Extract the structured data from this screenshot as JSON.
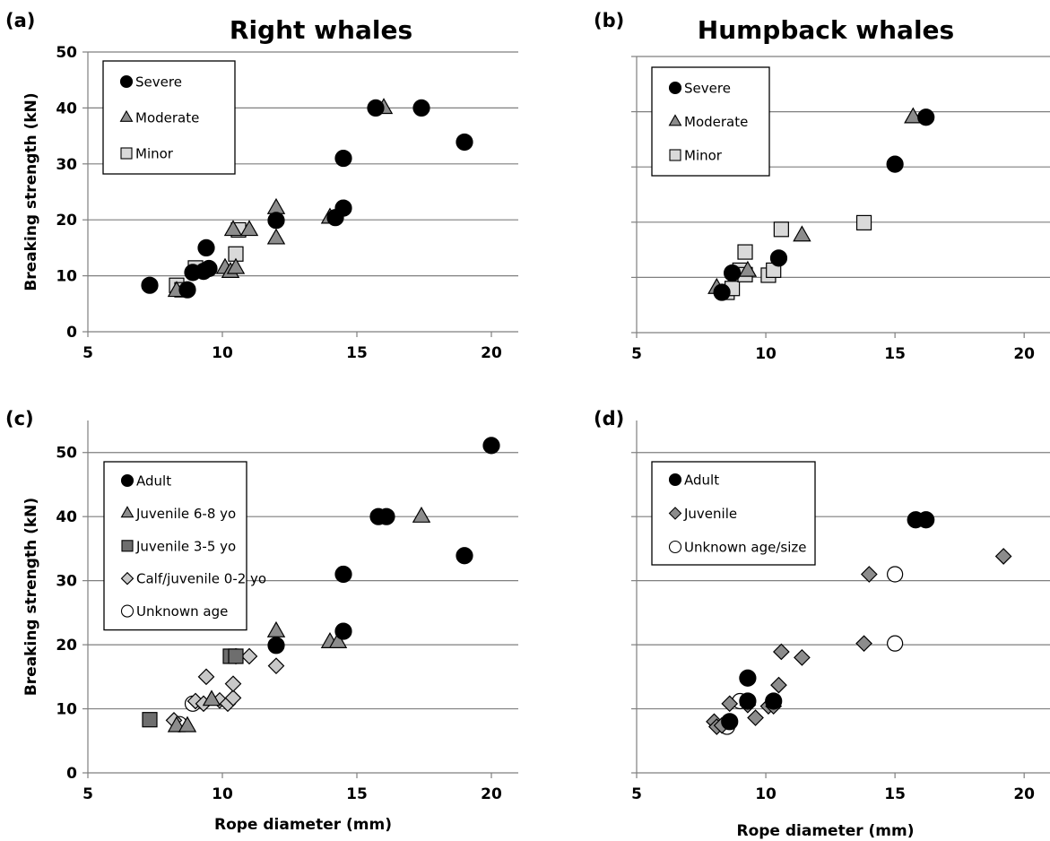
{
  "chart_data": [
    {
      "panel": "(a)",
      "title": "Right whales",
      "type": "scatter",
      "xlabel": "",
      "ylabel": "Breaking strength (kN)",
      "xlim": [
        5,
        21
      ],
      "ylim": [
        0,
        50
      ],
      "xticks": [
        5,
        10,
        15,
        20
      ],
      "yticks": [
        0,
        10,
        20,
        30,
        40,
        50
      ],
      "show_xtick_labels": true,
      "show_ytick_labels": true,
      "grid": "horizontal",
      "legend": "top-left",
      "series": [
        {
          "name": "Severe",
          "marker": "circle",
          "color": "#000000",
          "stroke": "#000000",
          "points": [
            [
              7.3,
              8.3
            ],
            [
              8.7,
              7.5
            ],
            [
              8.9,
              10.6
            ],
            [
              9.3,
              10.8
            ],
            [
              9.4,
              15.0
            ],
            [
              9.5,
              11.3
            ],
            [
              12.0,
              19.9
            ],
            [
              14.2,
              20.4
            ],
            [
              14.5,
              22.1
            ],
            [
              14.5,
              31.0
            ],
            [
              15.7,
              40.0
            ],
            [
              17.4,
              40.0
            ],
            [
              19.0,
              33.9
            ]
          ]
        },
        {
          "name": "Moderate",
          "marker": "triangle",
          "color": "#8c8c8c",
          "stroke": "#000000",
          "points": [
            [
              8.3,
              7.3
            ],
            [
              10.1,
              11.4
            ],
            [
              10.3,
              10.7
            ],
            [
              10.5,
              11.4
            ],
            [
              10.4,
              18.2
            ],
            [
              11.0,
              18.2
            ],
            [
              12.0,
              22.1
            ],
            [
              12.0,
              16.7
            ],
            [
              14.0,
              20.4
            ],
            [
              16.0,
              40.0
            ]
          ]
        },
        {
          "name": "Minor",
          "marker": "square",
          "color": "#d9d9d9",
          "stroke": "#000000",
          "points": [
            [
              8.3,
              8.3
            ],
            [
              8.5,
              7.5
            ],
            [
              9.0,
              11.4
            ],
            [
              10.5,
              13.9
            ],
            [
              10.6,
              18.2
            ]
          ]
        }
      ]
    },
    {
      "panel": "(b)",
      "title": "Humpback whales",
      "type": "scatter",
      "xlabel": "",
      "ylabel": "",
      "xlim": [
        5,
        21
      ],
      "ylim": [
        0,
        50
      ],
      "xticks": [
        5,
        10,
        15,
        20
      ],
      "yticks": [
        0,
        10,
        20,
        30,
        40,
        50
      ],
      "show_xtick_labels": true,
      "show_ytick_labels": false,
      "grid": "horizontal",
      "legend": "top-left",
      "series": [
        {
          "name": "Severe",
          "marker": "circle",
          "color": "#000000",
          "stroke": "#000000",
          "points": [
            [
              8.3,
              7.3
            ],
            [
              8.7,
              10.8
            ],
            [
              10.5,
              13.5
            ],
            [
              15.0,
              30.5
            ],
            [
              16.2,
              39.0
            ]
          ]
        },
        {
          "name": "Moderate",
          "marker": "triangle",
          "color": "#8c8c8c",
          "stroke": "#000000",
          "points": [
            [
              8.1,
              8.1
            ],
            [
              9.3,
              11.2
            ],
            [
              11.4,
              17.6
            ],
            [
              15.7,
              39.0
            ]
          ]
        },
        {
          "name": "Minor",
          "marker": "square",
          "color": "#d9d9d9",
          "stroke": "#000000",
          "points": [
            [
              8.5,
              7.3
            ],
            [
              8.7,
              8.0
            ],
            [
              9.0,
              11.3
            ],
            [
              9.2,
              10.5
            ],
            [
              9.2,
              14.6
            ],
            [
              10.1,
              10.4
            ],
            [
              10.3,
              11.3
            ],
            [
              10.6,
              18.7
            ],
            [
              13.8,
              19.9
            ]
          ]
        }
      ]
    },
    {
      "panel": "(c)",
      "title": "",
      "type": "scatter",
      "xlabel": "Rope diameter (mm)",
      "ylabel": "Breaking strength (kN)",
      "xlim": [
        5,
        21
      ],
      "ylim": [
        0,
        55
      ],
      "xticks": [
        5,
        10,
        15,
        20
      ],
      "yticks": [
        0,
        10,
        20,
        30,
        40,
        50
      ],
      "show_xtick_labels": true,
      "show_ytick_labels": true,
      "grid": "horizontal",
      "legend": "top-left",
      "series": [
        {
          "name": "Adult",
          "marker": "circle",
          "color": "#000000",
          "stroke": "#000000",
          "points": [
            [
              12.0,
              19.9
            ],
            [
              14.5,
              22.1
            ],
            [
              14.5,
              31.0
            ],
            [
              15.8,
              40.0
            ],
            [
              16.1,
              40.0
            ],
            [
              19.0,
              33.9
            ],
            [
              20.0,
              51.1
            ]
          ]
        },
        {
          "name": "Juvenile 6-8 yo",
          "marker": "triangle",
          "color": "#8c8c8c",
          "stroke": "#000000",
          "points": [
            [
              8.3,
              7.3
            ],
            [
              8.7,
              7.3
            ],
            [
              9.6,
              11.4
            ],
            [
              12.0,
              22.1
            ],
            [
              14.0,
              20.4
            ],
            [
              14.3,
              20.4
            ],
            [
              17.4,
              40.0
            ]
          ]
        },
        {
          "name": "Juvenile 3-5 yo",
          "marker": "square",
          "color": "#6e6e6e",
          "stroke": "#000000",
          "points": [
            [
              7.3,
              8.3
            ],
            [
              10.3,
              18.2
            ],
            [
              10.5,
              18.2
            ]
          ]
        },
        {
          "name": "Calf/juvenile 0-2 yo",
          "marker": "diamond",
          "color": "#c8c8c8",
          "stroke": "#000000",
          "points": [
            [
              8.2,
              8.2
            ],
            [
              9.0,
              11.2
            ],
            [
              9.3,
              10.8
            ],
            [
              9.4,
              15.0
            ],
            [
              9.9,
              11.3
            ],
            [
              10.2,
              10.8
            ],
            [
              10.4,
              11.7
            ],
            [
              10.4,
              13.9
            ],
            [
              10.5,
              18.2
            ],
            [
              11.0,
              18.2
            ],
            [
              12.0,
              16.7
            ]
          ]
        },
        {
          "name": "Unknown age",
          "marker": "open-circle",
          "color": "#ffffff",
          "stroke": "#000000",
          "points": [
            [
              8.4,
              7.6
            ],
            [
              8.9,
              10.8
            ]
          ]
        }
      ]
    },
    {
      "panel": "(d)",
      "title": "",
      "type": "scatter",
      "xlabel": "Rope diameter (mm)",
      "ylabel": "",
      "xlim": [
        5,
        21
      ],
      "ylim": [
        0,
        55
      ],
      "xticks": [
        5,
        10,
        15,
        20
      ],
      "yticks": [
        0,
        10,
        20,
        30,
        40,
        50
      ],
      "show_xtick_labels": true,
      "show_ytick_labels": false,
      "grid": "horizontal",
      "legend": "top-left",
      "series": [
        {
          "name": "Adult",
          "marker": "circle",
          "color": "#000000",
          "stroke": "#000000",
          "points": [
            [
              8.6,
              8.0
            ],
            [
              9.3,
              11.2
            ],
            [
              9.3,
              14.8
            ],
            [
              10.3,
              11.2
            ],
            [
              15.8,
              39.5
            ],
            [
              16.2,
              39.5
            ]
          ]
        },
        {
          "name": "Juvenile",
          "marker": "diamond",
          "color": "#8c8c8c",
          "stroke": "#000000",
          "points": [
            [
              8.0,
              8.0
            ],
            [
              8.1,
              7.2
            ],
            [
              8.3,
              7.4
            ],
            [
              8.6,
              10.8
            ],
            [
              9.3,
              10.6
            ],
            [
              9.6,
              8.6
            ],
            [
              10.1,
              10.4
            ],
            [
              10.3,
              10.4
            ],
            [
              10.5,
              13.7
            ],
            [
              10.6,
              18.9
            ],
            [
              11.4,
              18.0
            ],
            [
              13.8,
              20.2
            ],
            [
              14.0,
              31.0
            ],
            [
              19.2,
              33.8
            ]
          ]
        },
        {
          "name": "Unknown age/size",
          "marker": "open-circle",
          "color": "#ffffff",
          "stroke": "#000000",
          "points": [
            [
              8.5,
              7.2
            ],
            [
              9.0,
              11.2
            ],
            [
              15.0,
              20.2
            ],
            [
              15.0,
              31.0
            ]
          ]
        }
      ]
    }
  ]
}
